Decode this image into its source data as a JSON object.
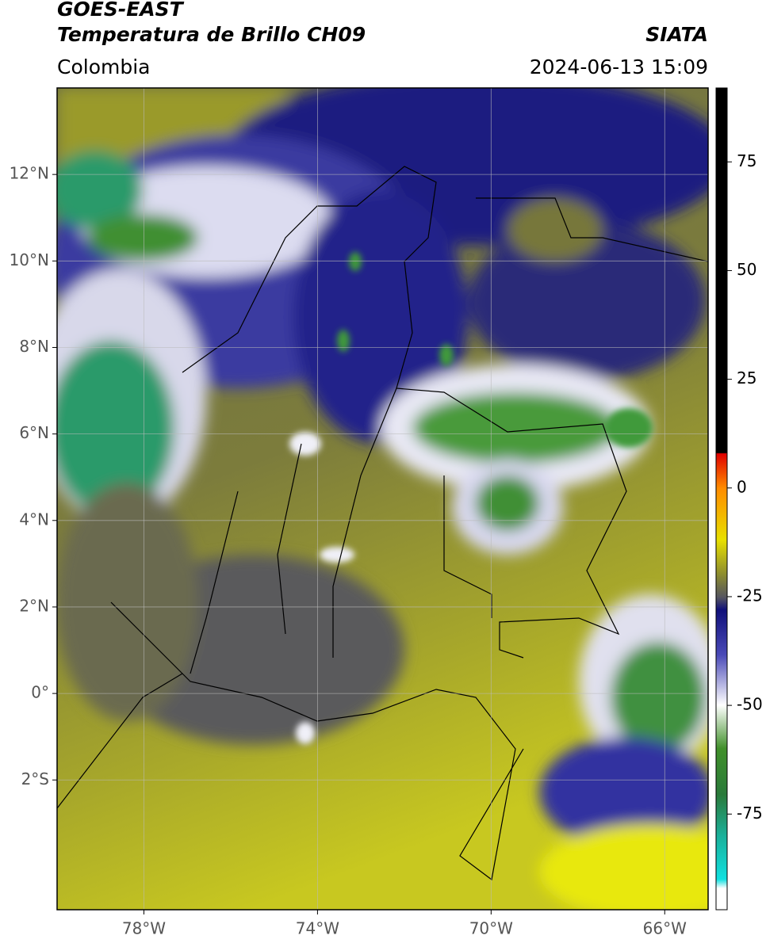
{
  "header": {
    "title": "GOES-EAST",
    "subtitle": "Temperatura de Brillo CH09",
    "source": "SIATA",
    "region": "Colombia",
    "datetime": "2024-06-13 15:09"
  },
  "map": {
    "xlim": [
      -80,
      -65
    ],
    "ylim": [
      -5,
      14
    ],
    "xticks": [
      {
        "value": -78,
        "label": "78°W"
      },
      {
        "value": -74,
        "label": "74°W"
      },
      {
        "value": -70,
        "label": "70°W"
      },
      {
        "value": -66,
        "label": "66°W"
      }
    ],
    "yticks": [
      {
        "value": 12,
        "label": "12°N"
      },
      {
        "value": 10,
        "label": "10°N"
      },
      {
        "value": 8,
        "label": "8°N"
      },
      {
        "value": 6,
        "label": "6°N"
      },
      {
        "value": 4,
        "label": "4°N"
      },
      {
        "value": 2,
        "label": "2°N"
      },
      {
        "value": 0,
        "label": "0°"
      },
      {
        "value": -2,
        "label": "2°S"
      }
    ],
    "grid": true
  },
  "colorbar": {
    "ylim": [
      -97,
      92
    ],
    "yticks": [
      75,
      50,
      25,
      0,
      -25,
      -50,
      -75
    ]
  }
}
